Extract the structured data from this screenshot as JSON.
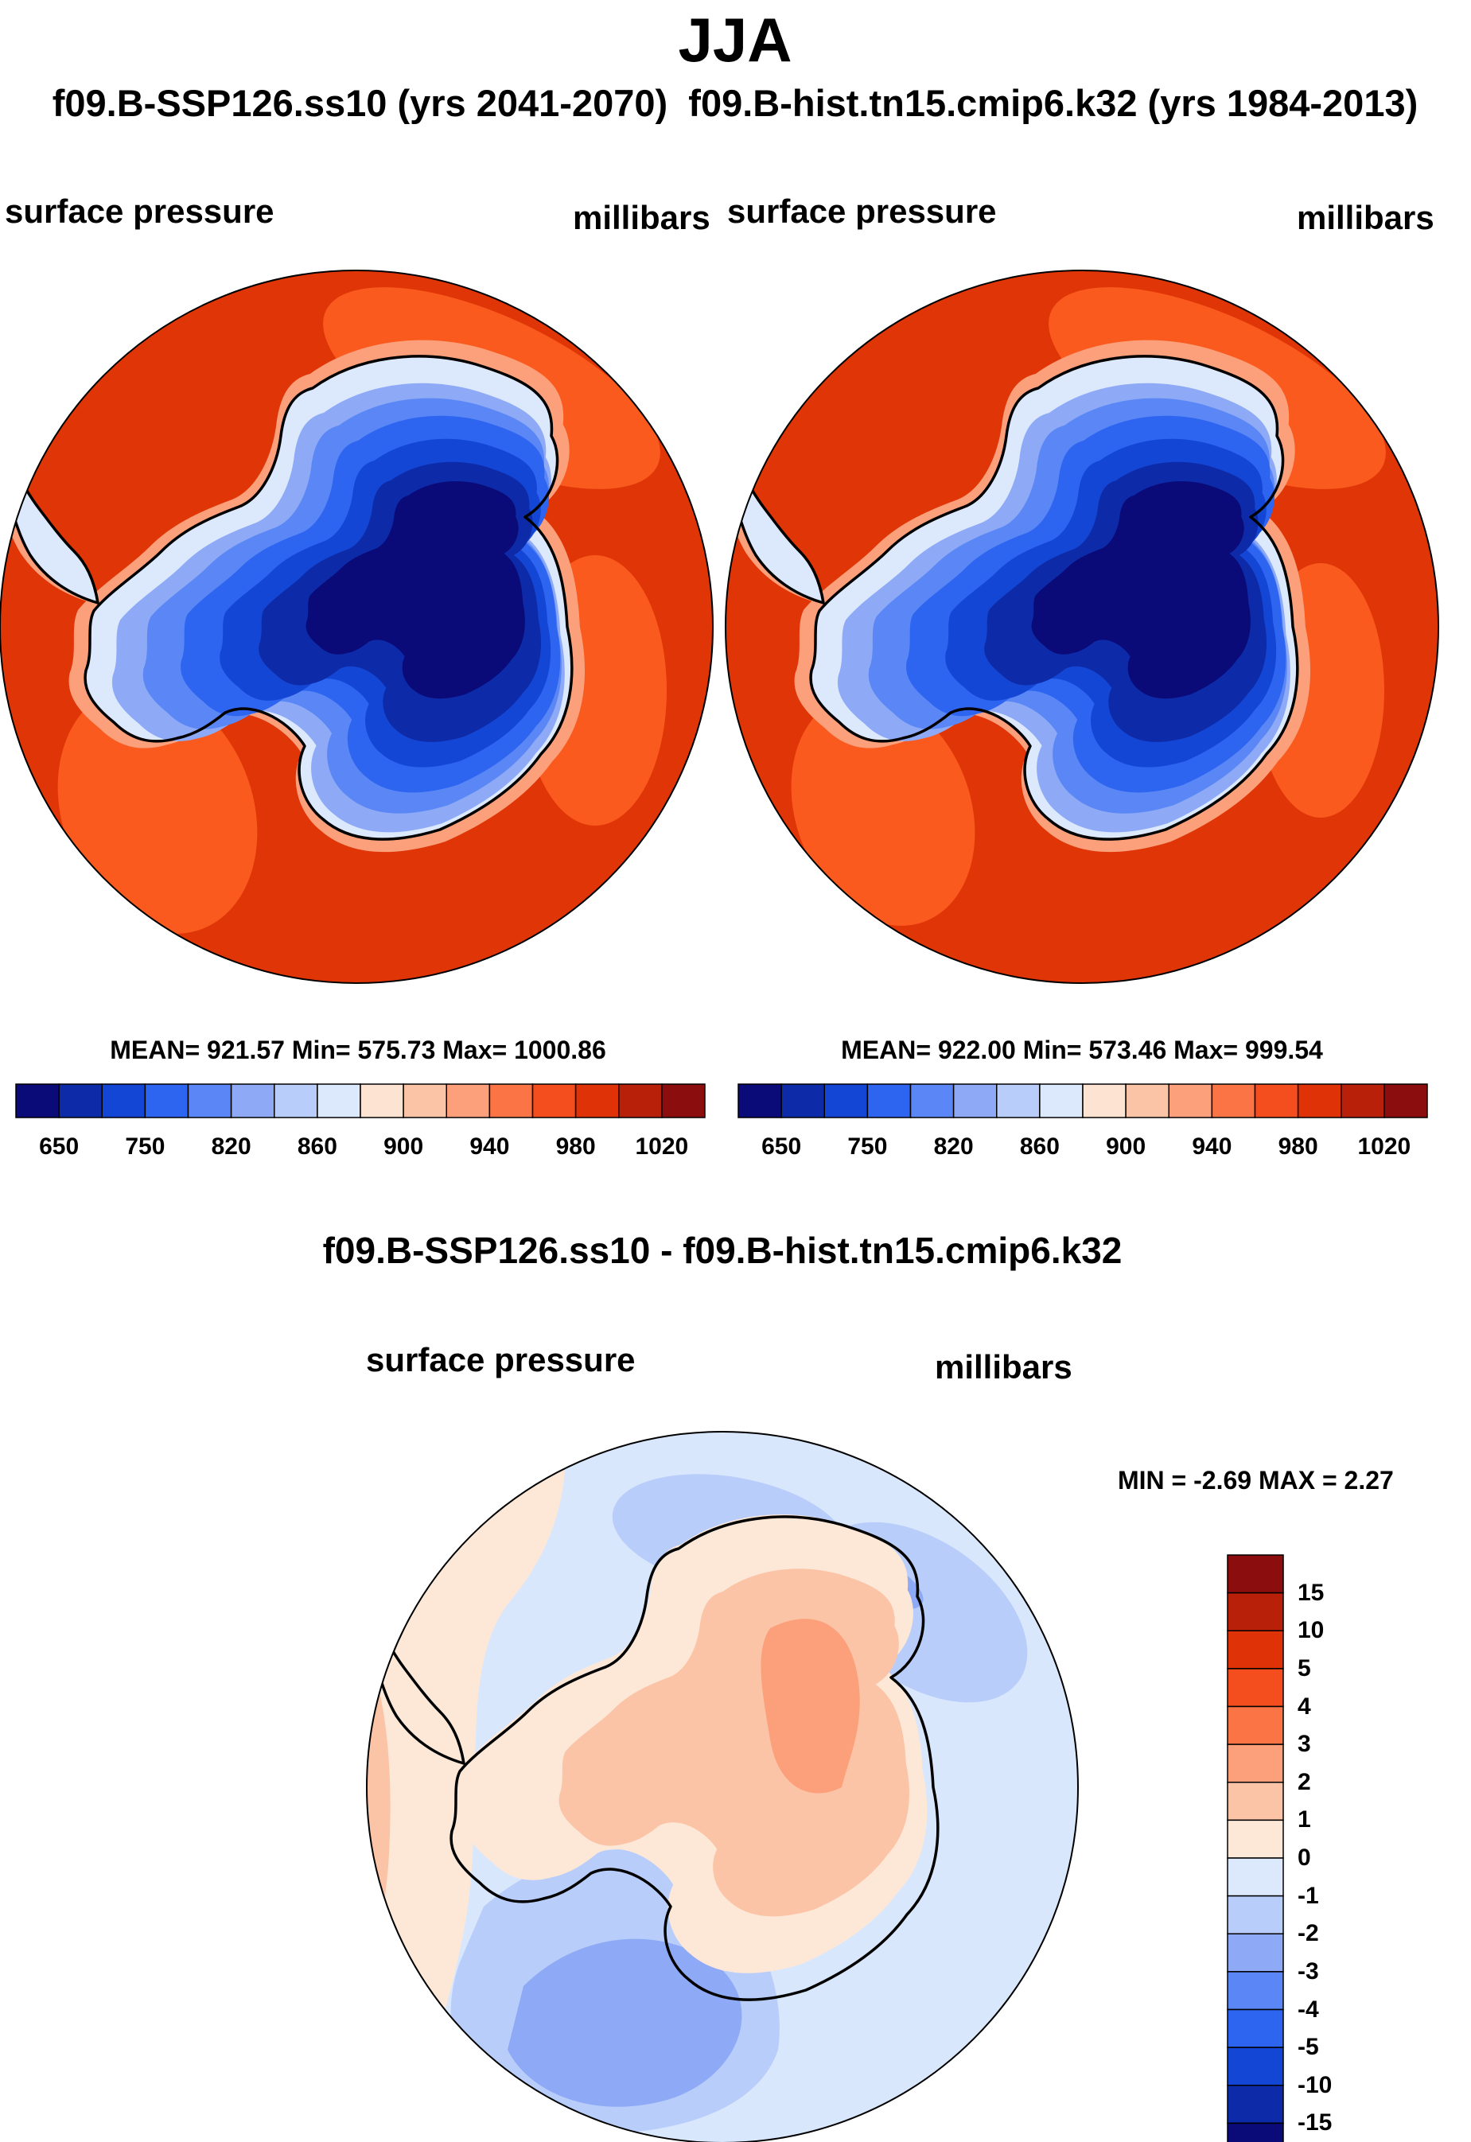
{
  "title": "JJA",
  "header": {
    "case1": "f09.B-SSP126.ss10 (yrs 2041-2070)",
    "case2": "f09.B-hist.tn15.cmip6.k32 (yrs 1984-2013)"
  },
  "panels": {
    "left": {
      "variable": "surface pressure",
      "units": "millibars",
      "stats": "MEAN= 921.57  Min= 575.73  Max= 1000.86"
    },
    "right": {
      "variable": "surface pressure",
      "units": "millibars",
      "stats": "MEAN= 922.00  Min= 573.46  Max= 999.54"
    },
    "diff": {
      "title": "f09.B-SSP126.ss10 - f09.B-hist.tn15.cmip6.k32",
      "variable": "surface pressure",
      "units": "millibars",
      "stats": "MIN =  -2.69 MAX =   2.27"
    }
  },
  "abs_colorbar": {
    "colors": [
      "#0a0a78",
      "#0d2ba8",
      "#1446d6",
      "#2d64f0",
      "#5a87f5",
      "#8eaaf6",
      "#b8cdf9",
      "#dce9fd",
      "#fde3d2",
      "#fcc4a6",
      "#fba07a",
      "#fa7446",
      "#f44e1e",
      "#e03207",
      "#b8200a",
      "#8c0d0d"
    ],
    "labels": [
      "650",
      "750",
      "820",
      "860",
      "900",
      "940",
      "980",
      "1020"
    ]
  },
  "diff_colorbar": {
    "colors": [
      "#0a0a78",
      "#0d2ba8",
      "#1446d6",
      "#2d64f0",
      "#5a87f5",
      "#8eaaf6",
      "#b8cdf9",
      "#dce9fd",
      "#fde8d8",
      "#fcc4a6",
      "#fba07a",
      "#fa7446",
      "#f44e1e",
      "#e03207",
      "#b8200a",
      "#8c0d0d"
    ],
    "labels": [
      "15",
      "10",
      "5",
      "4",
      "3",
      "2",
      "1",
      "0",
      "-1",
      "-2",
      "-3",
      "-4",
      "-5",
      "-10",
      "-15"
    ]
  },
  "map_colors": {
    "ocean_abs": "#e03507",
    "ocean_abs_high": "#fa5a1e",
    "coast_abs": "#fba07a",
    "interior_levels": [
      "#dce9fd",
      "#8eaaf6",
      "#5a87f5",
      "#2d64f0",
      "#1446d6",
      "#0d2ba8",
      "#0a0a78"
    ],
    "diff_base": "#d9e7fd",
    "diff_neg1": "#b8cdf9",
    "diff_neg2": "#8eaaf6",
    "diff_pos1": "#fde8d8",
    "diff_pos2": "#fcc4a6",
    "diff_pos3": "#fba07a"
  }
}
